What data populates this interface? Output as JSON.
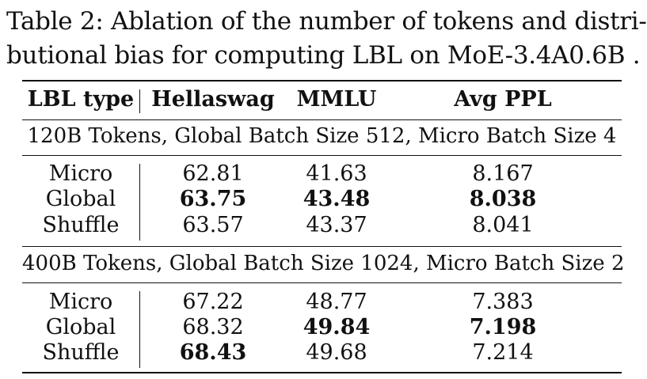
{
  "caption": {
    "line1": "Table 2: Ablation of the number of tokens and distri-",
    "line2": "butional bias for computing LBL on MoE-3.4A0.6B ."
  },
  "table": {
    "headers": [
      "LBL type",
      "Hellaswag",
      "MMLU",
      "Avg PPL"
    ],
    "groups": [
      {
        "title": "120B Tokens, Global Batch Size 512, Micro Batch Size 4",
        "rows": [
          {
            "type": "Micro",
            "hellaswag": "62.81",
            "mmlu": "41.63",
            "ppl": "8.167"
          },
          {
            "type": "Global",
            "hellaswag": "63.75",
            "mmlu": "43.48",
            "ppl": "8.038"
          },
          {
            "type": "Shuffle",
            "hellaswag": "63.57",
            "mmlu": "43.37",
            "ppl": "8.041"
          }
        ]
      },
      {
        "title": "400B Tokens, Global Batch Size 1024, Micro Batch Size 2",
        "rows": [
          {
            "type": "Micro",
            "hellaswag": "67.22",
            "mmlu": "48.77",
            "ppl": "7.383"
          },
          {
            "type": "Global",
            "hellaswag": "68.32",
            "mmlu": "49.84",
            "ppl": "7.198"
          },
          {
            "type": "Shuffle",
            "hellaswag": "68.43",
            "mmlu": "49.68",
            "ppl": "7.214"
          }
        ]
      }
    ]
  }
}
